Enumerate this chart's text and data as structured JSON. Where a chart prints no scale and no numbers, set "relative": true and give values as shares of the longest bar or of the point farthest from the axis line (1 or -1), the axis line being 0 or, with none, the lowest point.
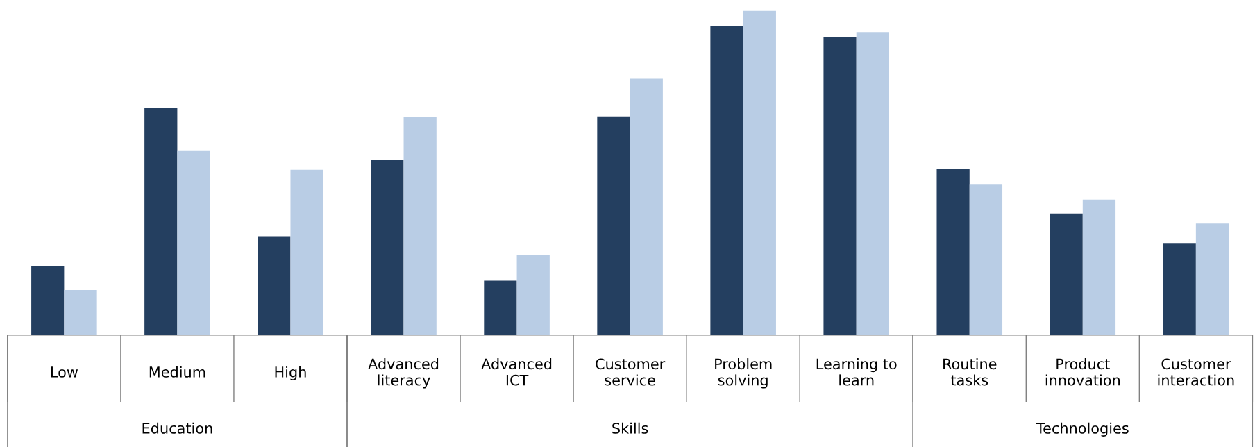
{
  "chart_data": {
    "type": "bar",
    "relative": true,
    "categories": [
      "Low",
      "Medium",
      "High",
      "Advanced\nliteracy",
      "Advanced\nICT",
      "Customer\nservice",
      "Problem\nsolving",
      "Learning to\nlearn",
      "Routine\ntasks",
      "Product\ninnovation",
      "Customer\ninteraction"
    ],
    "series": [
      {
        "color": "#243f60",
        "values": [
          0.214,
          0.7,
          0.305,
          0.541,
          0.168,
          0.675,
          0.954,
          0.918,
          0.512,
          0.375,
          0.284
        ]
      },
      {
        "color": "#b9cde5",
        "values": [
          0.139,
          0.57,
          0.51,
          0.673,
          0.248,
          0.791,
          1,
          0.935,
          0.466,
          0.418,
          0.344
        ]
      }
    ],
    "annotations": [
      "Education",
      "Skills",
      "Technologies"
    ]
  }
}
